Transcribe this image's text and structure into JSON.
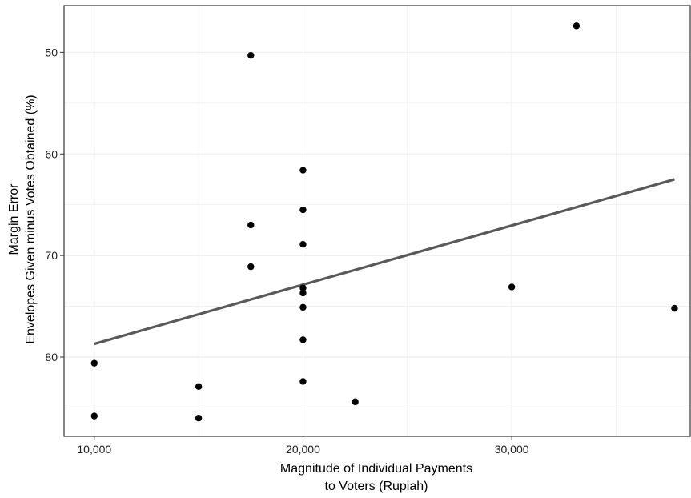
{
  "chart_data": {
    "type": "scatter",
    "xlabel": [
      "Magnitude of Individual Payments",
      "to Voters (Rupiah)"
    ],
    "ylabel": [
      "Margin Error",
      "Envelopes Given minus Votes Obtained (%)"
    ],
    "x_ticks": [
      {
        "value": 10000,
        "label": "10,000"
      },
      {
        "value": 20000,
        "label": "20,000"
      },
      {
        "value": 30000,
        "label": "30,000"
      }
    ],
    "y_ticks": [
      {
        "value": 50,
        "label": "50"
      },
      {
        "value": 60,
        "label": "60"
      },
      {
        "value": 70,
        "label": "70"
      },
      {
        "value": 80,
        "label": "80"
      }
    ],
    "xlim": [
      8550,
      38550
    ],
    "ylim": [
      45.4,
      87.8
    ],
    "y_reversed": true,
    "grid": true,
    "points": [
      {
        "x": 10000,
        "y": 80.6
      },
      {
        "x": 10000,
        "y": 85.8
      },
      {
        "x": 15000,
        "y": 82.9
      },
      {
        "x": 15000,
        "y": 86.0
      },
      {
        "x": 17500,
        "y": 50.3
      },
      {
        "x": 17500,
        "y": 67.0
      },
      {
        "x": 17500,
        "y": 71.1
      },
      {
        "x": 20000,
        "y": 61.6
      },
      {
        "x": 20000,
        "y": 65.5
      },
      {
        "x": 20000,
        "y": 68.9
      },
      {
        "x": 20000,
        "y": 73.2
      },
      {
        "x": 20000,
        "y": 73.7
      },
      {
        "x": 20000,
        "y": 75.1
      },
      {
        "x": 20000,
        "y": 78.3
      },
      {
        "x": 20000,
        "y": 82.4
      },
      {
        "x": 22500,
        "y": 84.4
      },
      {
        "x": 30000,
        "y": 73.1
      },
      {
        "x": 33100,
        "y": 47.4
      },
      {
        "x": 37800,
        "y": 75.2
      }
    ],
    "fit_line": {
      "x": [
        10000,
        37800
      ],
      "y": [
        78.7,
        62.5
      ]
    }
  },
  "colors": {
    "points": "#000000",
    "fit_line": "#595959",
    "grid": "#ebebeb",
    "panel_border": "#333333",
    "background": "#ffffff"
  }
}
